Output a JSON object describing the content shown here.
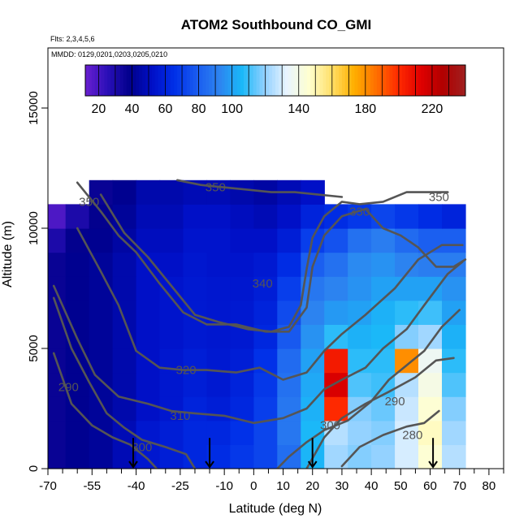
{
  "chart_data": {
    "type": "heatmap",
    "title": "ATOM2 Southbound CO_GMI",
    "notes": [
      "Flts: 2,3,4,5,6",
      "MMDD: 0129,0201,0203,0205,0210"
    ],
    "xlabel": "Latitude (deg N)",
    "ylabel": "Altitude (m)",
    "xlim": [
      -70,
      85
    ],
    "ylim": [
      0,
      17500
    ],
    "x_ticks": [
      -70,
      -55,
      -40,
      -25,
      -10,
      0,
      10,
      20,
      30,
      40,
      50,
      60,
      70,
      80
    ],
    "x_tick_labels": [
      "-70",
      "-55",
      "-40",
      "-25",
      "-10",
      "0",
      "10",
      "20",
      "30",
      "40",
      "50",
      "60",
      "70",
      "80"
    ],
    "y_ticks": [
      0,
      5000,
      10000,
      15000
    ],
    "y_tick_labels": [
      "0",
      "5000",
      "10000",
      "15000"
    ],
    "colorbar": {
      "min": 12,
      "max": 240,
      "ticks": [
        20,
        40,
        60,
        80,
        100,
        140,
        180,
        220
      ],
      "tick_labels": [
        "20",
        "40",
        "60",
        "80",
        "100",
        "140",
        "180",
        "220"
      ],
      "colors": [
        "#6a1fd0",
        "#2a0fb8",
        "#00008b",
        "#0010c8",
        "#0030e8",
        "#1a5cf0",
        "#2d84f0",
        "#1ab8f8",
        "#8fd0ff",
        "#e8f4ff",
        "#ffffd0",
        "#ffe06a",
        "#ffb000",
        "#ff7000",
        "#ff2a00",
        "#e00000",
        "#b00000",
        "#a02020"
      ]
    },
    "field": {
      "lat": [
        -68,
        -60,
        -52,
        -44,
        -36,
        -28,
        -20,
        -12,
        -4,
        4,
        12,
        20,
        28,
        36,
        44,
        52,
        60,
        68
      ],
      "alt": [
        500,
        1500,
        2500,
        3500,
        4500,
        5500,
        6500,
        7500,
        8500,
        9500,
        10500,
        11500
      ],
      "co": [
        [
          36,
          40,
          42,
          48,
          55,
          58,
          62,
          64,
          68,
          72,
          85,
          105,
          122,
          118,
          120,
          130,
          145,
          125
        ],
        [
          36,
          40,
          42,
          48,
          55,
          58,
          62,
          62,
          66,
          72,
          88,
          106,
          125,
          120,
          118,
          130,
          148,
          122
        ],
        [
          36,
          40,
          42,
          46,
          52,
          55,
          60,
          58,
          62,
          70,
          88,
          104,
          200,
          118,
          115,
          128,
          145,
          118
        ],
        [
          36,
          40,
          42,
          46,
          52,
          55,
          58,
          56,
          60,
          68,
          86,
          102,
          215,
          112,
          110,
          125,
          140,
          112
        ],
        [
          36,
          40,
          42,
          46,
          52,
          55,
          58,
          56,
          58,
          66,
          84,
          100,
          205,
          108,
          108,
          180,
          136,
          108
        ],
        [
          36,
          40,
          42,
          46,
          52,
          54,
          56,
          55,
          56,
          62,
          78,
          96,
          108,
          104,
          106,
          118,
          122,
          104
        ],
        [
          36,
          40,
          42,
          46,
          52,
          54,
          56,
          55,
          56,
          60,
          74,
          92,
          98,
          100,
          104,
          108,
          110,
          100
        ],
        [
          36,
          40,
          42,
          46,
          52,
          54,
          56,
          55,
          55,
          58,
          70,
          88,
          92,
          96,
          100,
          100,
          100,
          96
        ],
        [
          36,
          40,
          42,
          46,
          52,
          52,
          55,
          54,
          54,
          56,
          64,
          80,
          86,
          94,
          96,
          92,
          90,
          90
        ],
        [
          30,
          38,
          40,
          44,
          50,
          50,
          54,
          54,
          52,
          52,
          58,
          70,
          76,
          86,
          90,
          84,
          80,
          80
        ],
        [
          18,
          30,
          38,
          42,
          48,
          48,
          52,
          52,
          50,
          48,
          52,
          60,
          64,
          68,
          72,
          68,
          64,
          60
        ],
        [
          0,
          0,
          36,
          40,
          46,
          46,
          48,
          48,
          46,
          44,
          48,
          52,
          0,
          0,
          0,
          0,
          0,
          0
        ]
      ]
    },
    "contours": [
      {
        "level": 280,
        "label": "280",
        "points": [
          [
            30,
            100
          ],
          [
            36,
            900
          ],
          [
            44,
            1400
          ],
          [
            52,
            1750
          ],
          [
            58,
            1900
          ],
          [
            63,
            2400
          ]
        ]
      },
      {
        "level": 290,
        "label": "290",
        "points": [
          [
            -68,
            4800
          ],
          [
            -62,
            2700
          ],
          [
            -55,
            1800
          ],
          [
            -48,
            1300
          ],
          [
            -42,
            1000
          ],
          [
            -36,
            400
          ],
          [
            -33,
            0
          ]
        ]
      },
      {
        "level": 290,
        "label": "290",
        "points": [
          [
            18,
            0
          ],
          [
            24,
            1300
          ],
          [
            30,
            2100
          ],
          [
            38,
            2700
          ],
          [
            46,
            3200
          ],
          [
            55,
            3800
          ],
          [
            62,
            4500
          ],
          [
            68,
            4600
          ]
        ]
      },
      {
        "level": 300,
        "label": "300",
        "points": [
          [
            -68,
            7100
          ],
          [
            -62,
            5000
          ],
          [
            -56,
            3600
          ],
          [
            -50,
            2300
          ],
          [
            -44,
            1700
          ],
          [
            -38,
            1200
          ],
          [
            -30,
            900
          ],
          [
            -23,
            600
          ],
          [
            -20,
            0
          ]
        ]
      },
      {
        "level": 300,
        "label": "300",
        "points": [
          [
            8,
            0
          ],
          [
            12,
            500
          ],
          [
            18,
            1100
          ],
          [
            24,
            1600
          ],
          [
            32,
            2000
          ],
          [
            40,
            2800
          ],
          [
            46,
            3700
          ],
          [
            52,
            4300
          ],
          [
            58,
            4900
          ],
          [
            64,
            5900
          ],
          [
            70,
            6600
          ]
        ]
      },
      {
        "level": 310,
        "label": "310",
        "points": [
          [
            -68,
            7600
          ],
          [
            -60,
            5400
          ],
          [
            -54,
            3900
          ],
          [
            -46,
            3000
          ],
          [
            -36,
            2700
          ],
          [
            -28,
            2400
          ],
          [
            -20,
            2300
          ],
          [
            -10,
            2200
          ],
          [
            0,
            1900
          ],
          [
            10,
            2100
          ],
          [
            18,
            2500
          ],
          [
            24,
            3300
          ],
          [
            30,
            3700
          ],
          [
            38,
            4200
          ],
          [
            44,
            5000
          ],
          [
            52,
            5800
          ],
          [
            58,
            6800
          ],
          [
            66,
            8100
          ],
          [
            71,
            8600
          ]
        ]
      },
      {
        "level": 320,
        "label": "320",
        "points": [
          [
            -60,
            10000
          ],
          [
            -52,
            8200
          ],
          [
            -46,
            6800
          ],
          [
            -40,
            4900
          ],
          [
            -32,
            4200
          ],
          [
            -24,
            4100
          ],
          [
            -16,
            4100
          ],
          [
            -6,
            4000
          ],
          [
            2,
            4200
          ],
          [
            10,
            3700
          ],
          [
            18,
            4000
          ],
          [
            24,
            4900
          ],
          [
            30,
            5600
          ],
          [
            38,
            6400
          ],
          [
            48,
            7500
          ],
          [
            56,
            8700
          ],
          [
            64,
            9300
          ],
          [
            71,
            9300
          ]
        ]
      },
      {
        "level": 340,
        "label": "340",
        "points": [
          [
            -60,
            11900
          ],
          [
            -52,
            10700
          ],
          [
            -46,
            9700
          ],
          [
            -40,
            9000
          ],
          [
            -32,
            7700
          ],
          [
            -24,
            6500
          ],
          [
            -16,
            6000
          ],
          [
            -6,
            6000
          ],
          [
            4,
            5700
          ],
          [
            12,
            5700
          ],
          [
            18,
            6700
          ],
          [
            20,
            8400
          ],
          [
            24,
            9700
          ],
          [
            30,
            10500
          ],
          [
            38,
            10800
          ],
          [
            44,
            10000
          ],
          [
            50,
            9700
          ],
          [
            56,
            9200
          ],
          [
            62,
            8400
          ],
          [
            68,
            8400
          ],
          [
            72,
            8700
          ]
        ]
      },
      {
        "level": 330,
        "label": "330",
        "points": [
          [
            -52,
            11400
          ],
          [
            -44,
            9800
          ],
          [
            -36,
            8800
          ],
          [
            -28,
            7600
          ],
          [
            -20,
            6400
          ],
          [
            -12,
            6100
          ],
          [
            -2,
            5800
          ],
          [
            6,
            5700
          ],
          [
            12,
            5900
          ],
          [
            16,
            6800
          ],
          [
            18,
            8300
          ],
          [
            20,
            9600
          ],
          [
            24,
            10500
          ],
          [
            30,
            11100
          ],
          [
            36,
            11000
          ],
          [
            44,
            11100
          ],
          [
            52,
            11500
          ],
          [
            58,
            11500
          ],
          [
            66,
            11500
          ]
        ]
      },
      {
        "level": 350,
        "label": "350",
        "points": [
          [
            -26,
            12000
          ],
          [
            -18,
            11800
          ],
          [
            -10,
            11700
          ],
          [
            -2,
            11600
          ],
          [
            6,
            11500
          ],
          [
            14,
            11500
          ],
          [
            22,
            11400
          ],
          [
            30,
            11300
          ]
        ]
      }
    ],
    "contour_labels": [
      {
        "text": "280",
        "x": 54,
        "y": 1400
      },
      {
        "text": "290",
        "x": -63,
        "y": 3400
      },
      {
        "text": "290",
        "x": 48,
        "y": 2800
      },
      {
        "text": "300",
        "x": -38,
        "y": 900
      },
      {
        "text": "300",
        "x": 26,
        "y": 1800
      },
      {
        "text": "310",
        "x": -25,
        "y": 2200
      },
      {
        "text": "320",
        "x": -23,
        "y": 4100
      },
      {
        "text": "330",
        "x": 36,
        "y": 10700
      },
      {
        "text": "340",
        "x": 3,
        "y": 7700
      },
      {
        "text": "350",
        "x": -13,
        "y": 11700
      },
      {
        "text": "350",
        "x": -56,
        "y": 11100
      },
      {
        "text": "350",
        "x": 63,
        "y": 11300
      }
    ],
    "arrows": [
      {
        "x": -41,
        "y": 600
      },
      {
        "x": -15,
        "y": 600
      },
      {
        "x": 20,
        "y": 600
      },
      {
        "x": 61,
        "y": 600
      }
    ],
    "grid": false
  }
}
